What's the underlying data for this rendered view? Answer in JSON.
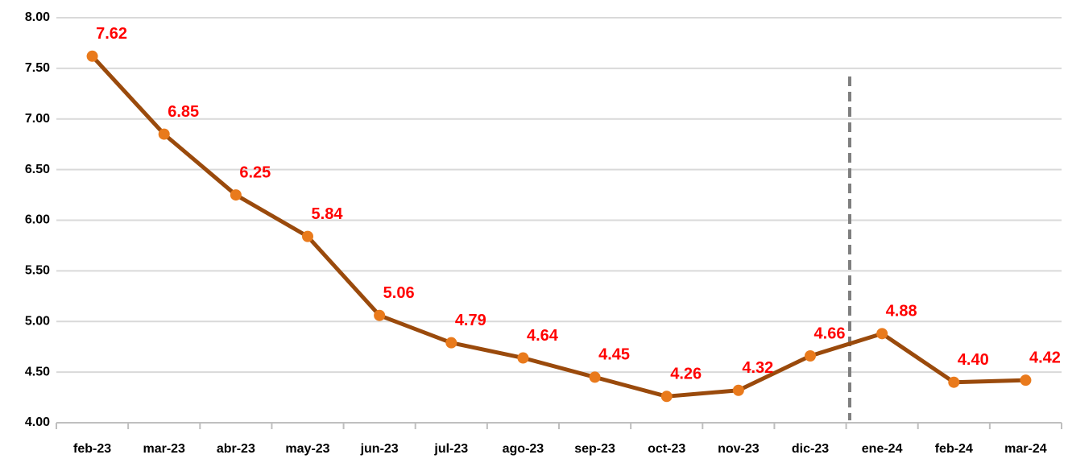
{
  "chart_data": {
    "type": "line",
    "categories": [
      "feb-23",
      "mar-23",
      "abr-23",
      "may-23",
      "jun-23",
      "jul-23",
      "ago-23",
      "sep-23",
      "oct-23",
      "nov-23",
      "dic-23",
      "ene-24",
      "feb-24",
      "mar-24"
    ],
    "values": [
      7.62,
      6.85,
      6.25,
      5.84,
      5.06,
      4.79,
      4.64,
      4.45,
      4.26,
      4.32,
      4.66,
      4.88,
      4.4,
      4.42
    ],
    "value_labels": [
      "7.62",
      "6.85",
      "6.25",
      "5.84",
      "5.06",
      "4.79",
      "4.64",
      "4.45",
      "4.26",
      "4.32",
      "4.66",
      "4.88",
      "4.40",
      "4.42"
    ],
    "color": "#9a4a0c",
    "marker_color": "#e97a1c",
    "label_color": "#ff0000",
    "ylim": [
      4,
      8
    ],
    "yticks": [
      {
        "value": 4,
        "label": "4.00"
      },
      {
        "value": 4.5,
        "label": "4.50"
      },
      {
        "value": 5,
        "label": "5.00"
      },
      {
        "value": 5.5,
        "label": "5.50"
      },
      {
        "value": 6,
        "label": "6.00"
      },
      {
        "value": 6.5,
        "label": "6.50"
      },
      {
        "value": 7,
        "label": "7.00"
      },
      {
        "value": 7.5,
        "label": "7.50"
      },
      {
        "value": 8,
        "label": "8.00"
      }
    ],
    "grid": true
  }
}
